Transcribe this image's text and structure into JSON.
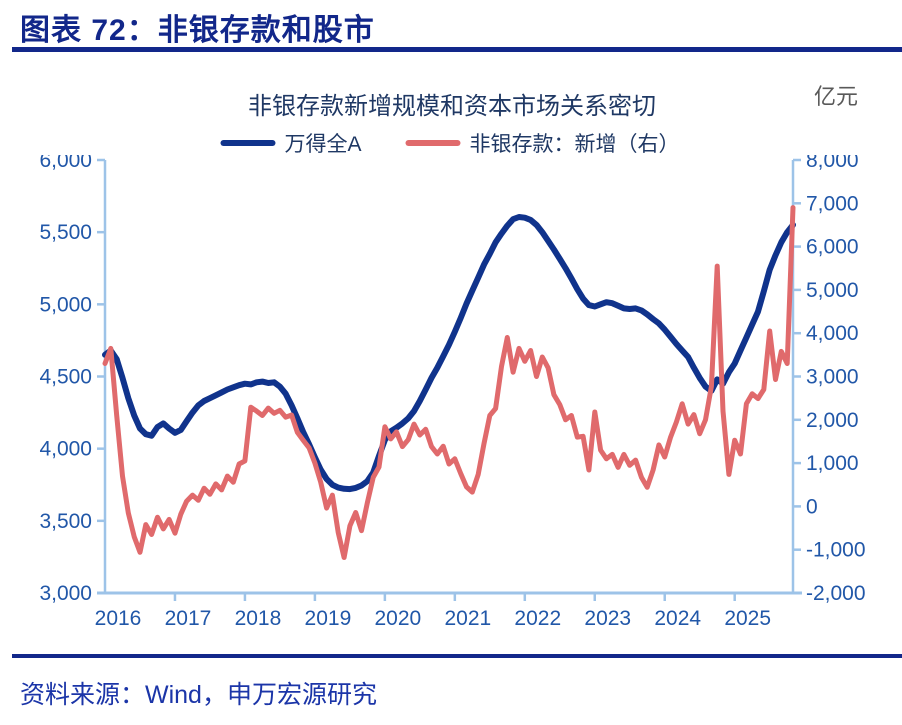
{
  "header": {
    "title": "图表 72：非银存款和股市"
  },
  "chart": {
    "subtitle": "非银存款新增规模和资本市场关系密切",
    "unit_label": "亿元",
    "legend": [
      {
        "label": "万得全A",
        "color": "#10338C"
      },
      {
        "label": "非银存款：新增（右）",
        "color": "#E06A6C"
      }
    ]
  },
  "source": {
    "text": "资料来源：Wind，申万宏源研究"
  },
  "theme": {
    "header_navy": "#12278A",
    "subtitle_navy": "#1F3864",
    "axis_text": "#2157A8",
    "axis_line": "#9DC3E8",
    "series_blue": "#10338C",
    "series_red": "#E06A6C",
    "unit_gray": "#595959",
    "source_blue": "#1B35A8"
  },
  "chart_data": {
    "type": "line",
    "title": "非银存款新增规模和资本市场关系密切",
    "frequency": "monthly",
    "x_start": "2016-01",
    "x_end": "2025-11",
    "grid": false,
    "legend_position": "top",
    "x_tick_labels": [
      "2016",
      "2017",
      "2018",
      "2019",
      "2020",
      "2021",
      "2022",
      "2023",
      "2024",
      "2025"
    ],
    "x_year_start_indices": [
      0,
      12,
      24,
      36,
      48,
      60,
      72,
      84,
      96,
      108
    ],
    "left_axis": {
      "min": 3000,
      "max": 6000,
      "step": 500,
      "ticks": [
        6000,
        5500,
        5000,
        4500,
        4000,
        3500,
        3000
      ],
      "tick_labels": [
        "6,000",
        "5,500",
        "5,000",
        "4,500",
        "4,000",
        "3,500",
        "3,000"
      ]
    },
    "right_axis": {
      "unit": "亿元",
      "min": -2000,
      "max": 8000,
      "step": 1000,
      "ticks": [
        8000,
        7000,
        6000,
        5000,
        4000,
        3000,
        2000,
        1000,
        0,
        -1000,
        -2000
      ],
      "tick_labels": [
        "8,000",
        "7,000",
        "6,000",
        "5,000",
        "4,000",
        "3,000",
        "2,000",
        "1,000",
        "0",
        "-1,000",
        "-2,000"
      ]
    },
    "series": [
      {
        "name": "万得全A",
        "axis": "left",
        "color": "#10338C",
        "values": [
          4650,
          4680,
          4620,
          4490,
          4350,
          4230,
          4140,
          4100,
          4090,
          4150,
          4175,
          4140,
          4110,
          4130,
          4190,
          4250,
          4300,
          4330,
          4350,
          4370,
          4390,
          4410,
          4425,
          4440,
          4450,
          4445,
          4460,
          4465,
          4455,
          4460,
          4430,
          4380,
          4300,
          4210,
          4115,
          4030,
          3940,
          3855,
          3790,
          3750,
          3730,
          3722,
          3720,
          3728,
          3745,
          3775,
          3835,
          3950,
          4060,
          4120,
          4145,
          4175,
          4210,
          4260,
          4330,
          4410,
          4490,
          4560,
          4640,
          4720,
          4810,
          4905,
          5005,
          5095,
          5185,
          5275,
          5350,
          5430,
          5490,
          5545,
          5590,
          5605,
          5600,
          5585,
          5550,
          5500,
          5440,
          5380,
          5315,
          5250,
          5180,
          5105,
          5040,
          4995,
          4985,
          5000,
          5015,
          5008,
          4990,
          4972,
          4968,
          4972,
          4958,
          4930,
          4898,
          4868,
          4825,
          4775,
          4725,
          4680,
          4635,
          4560,
          4490,
          4430,
          4400,
          4480,
          4450,
          4530,
          4590,
          4680,
          4770,
          4860,
          4950,
          5090,
          5240,
          5340,
          5430,
          5500,
          5550
        ]
      },
      {
        "name": "非银存款：新增（右）",
        "axis": "right",
        "color": "#E06A6C",
        "values": [
          3300,
          3650,
          2100,
          700,
          -150,
          -700,
          -1060,
          -420,
          -650,
          -250,
          -520,
          -300,
          -620,
          -180,
          120,
          260,
          140,
          420,
          280,
          520,
          380,
          700,
          560,
          980,
          1050,
          2290,
          2200,
          2100,
          2270,
          2150,
          2220,
          2060,
          2110,
          1710,
          1530,
          1350,
          1000,
          560,
          -40,
          260,
          -600,
          -1180,
          -450,
          -140,
          -560,
          90,
          670,
          910,
          1840,
          1560,
          1720,
          1380,
          1540,
          1900,
          1650,
          1780,
          1380,
          1210,
          1390,
          980,
          1100,
          760,
          450,
          330,
          740,
          1450,
          2100,
          2260,
          3230,
          3900,
          3100,
          3650,
          3350,
          3600,
          3000,
          3450,
          3200,
          2580,
          2350,
          2000,
          2100,
          1600,
          1620,
          840,
          2180,
          1300,
          1100,
          1200,
          900,
          1200,
          950,
          1070,
          675,
          440,
          840,
          1420,
          1140,
          1600,
          1950,
          2370,
          1900,
          2120,
          1680,
          2000,
          2770,
          5550,
          2200,
          740,
          1530,
          1210,
          2370,
          2600,
          2490,
          2700,
          4050,
          2930,
          3580,
          3300,
          6900
        ]
      }
    ]
  }
}
